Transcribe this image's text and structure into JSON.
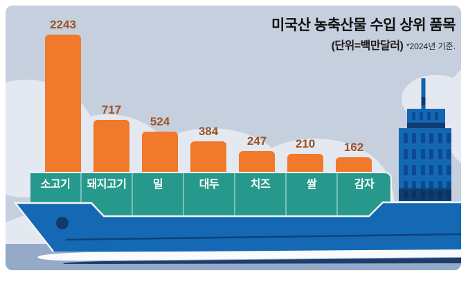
{
  "header": {
    "title": "미국산 농축산물 수입 상위 품목",
    "unit": "(단위=백만달러)",
    "note": "*2024년 기준."
  },
  "chart_data": {
    "type": "bar",
    "title": "미국산 농축산물 수입 상위 품목",
    "unit_label": "단위=백만달러",
    "note": "*2024년 기준.",
    "categories": [
      "소고기",
      "돼지고기",
      "밀",
      "대두",
      "치즈",
      "쌀",
      "감자"
    ],
    "values": [
      2243,
      717,
      524,
      384,
      247,
      210,
      162
    ],
    "ylim": [
      0,
      2400
    ],
    "grid": false,
    "legend": "none",
    "bar_color": "#F0792B",
    "value_label_color": "#9B5225"
  },
  "scene": {
    "illustration": "container-ship-with-cargo-bars",
    "sky_color": "#C6CFDD",
    "cloud_color": "#E4E9F1",
    "deck_color": "#27998C",
    "hull_color": "#1569B4",
    "water_color": "#94AAC8",
    "navy_accent": "#123A68"
  }
}
